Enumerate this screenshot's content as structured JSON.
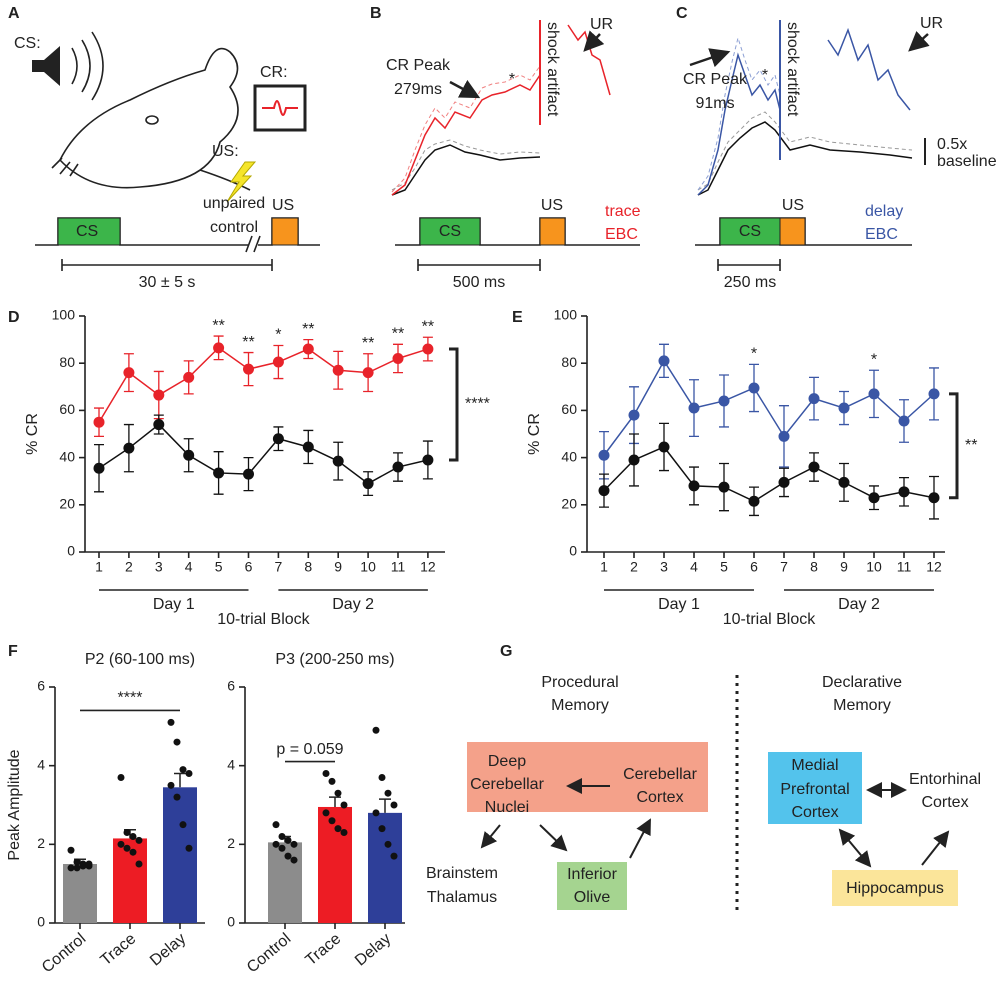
{
  "panel_labels": [
    "A",
    "B",
    "C",
    "D",
    "E",
    "F",
    "G"
  ],
  "panel_a": {
    "cs_label": "CS:",
    "cr_label": "CR:",
    "us_label": "US:",
    "unpaired": [
      "unpaired",
      "control"
    ],
    "cs_box": "CS",
    "us_box": "US",
    "interval": "30 ± 5 s"
  },
  "panel_b": {
    "cr_peak": [
      "CR Peak",
      "279ms"
    ],
    "star": "*",
    "shock": "shock artifact",
    "ur": "UR",
    "cs_box": "CS",
    "us_box": "US",
    "condition": [
      "trace",
      "EBC"
    ],
    "scale": "500 ms"
  },
  "panel_c": {
    "cr_peak": [
      "CR Peak",
      "91ms"
    ],
    "star": "*",
    "shock": "shock artifact",
    "ur": "UR",
    "cs_box": "CS",
    "us_box": "US",
    "condition": [
      "delay",
      "EBC"
    ],
    "scale": "250 ms",
    "scale_y": [
      "0.5x",
      "baseline"
    ]
  },
  "chart_data": [
    {
      "type": "line",
      "ylabel": "% CR",
      "xlabel": "10-trial Block",
      "groups": [
        "Day 1",
        "Day 2"
      ],
      "categories": [
        "1",
        "2",
        "3",
        "4",
        "5",
        "6",
        "7",
        "8",
        "9",
        "10",
        "11",
        "12"
      ],
      "ylim": [
        0,
        100
      ],
      "yticks": [
        0,
        20,
        40,
        60,
        80,
        100
      ],
      "series": [
        {
          "color": "#e8232a",
          "values": [
            55,
            76,
            66.5,
            74,
            86.5,
            77.5,
            80.5,
            86,
            77,
            76,
            82,
            86
          ],
          "errors": [
            6,
            8,
            10,
            7,
            5,
            7,
            7,
            4,
            8,
            8,
            6,
            5
          ]
        },
        {
          "color": "#111111",
          "values": [
            35.5,
            44,
            54,
            41,
            33.5,
            33,
            48,
            44.5,
            38.5,
            29,
            36,
            39
          ],
          "errors": [
            10,
            10,
            4,
            7,
            9,
            7,
            5,
            7,
            8,
            5,
            6,
            8
          ]
        }
      ],
      "stars": [
        null,
        null,
        null,
        null,
        "**",
        "**",
        "*",
        "**",
        null,
        "**",
        "**",
        "**"
      ],
      "bracket_label": "****"
    },
    {
      "type": "line",
      "ylabel": "% CR",
      "xlabel": "10-trial Block",
      "groups": [
        "Day 1",
        "Day 2"
      ],
      "categories": [
        "1",
        "2",
        "3",
        "4",
        "5",
        "6",
        "7",
        "8",
        "9",
        "10",
        "11",
        "12"
      ],
      "ylim": [
        0,
        100
      ],
      "yticks": [
        0,
        20,
        40,
        60,
        80,
        100
      ],
      "series": [
        {
          "color": "#3a56a5",
          "values": [
            41,
            58,
            81,
            61,
            64,
            69.5,
            49,
            65,
            61,
            67,
            55.5,
            67
          ],
          "errors": [
            10,
            12,
            7,
            12,
            11,
            10,
            13,
            9,
            7,
            10,
            9,
            11
          ]
        },
        {
          "color": "#111111",
          "values": [
            26,
            39,
            44.5,
            28,
            27.5,
            21.5,
            29.5,
            36,
            29.5,
            23,
            25.5,
            23
          ],
          "errors": [
            7,
            11,
            10,
            8,
            10,
            6,
            6,
            6,
            8,
            5,
            6,
            9
          ]
        }
      ],
      "stars": [
        null,
        null,
        null,
        null,
        null,
        "*",
        null,
        null,
        null,
        "*",
        null,
        null
      ],
      "bracket_label": "**"
    },
    {
      "type": "bar",
      "title": "P2 (60-100 ms)",
      "ylabel": "Peak Amplitude",
      "categories": [
        "Control",
        "Trace",
        "Delay"
      ],
      "colors": [
        "#8c8c8c",
        "#ed1c24",
        "#2e3f99"
      ],
      "values": [
        1.5,
        2.15,
        3.45
      ],
      "errors": [
        0.12,
        0.22,
        0.35
      ],
      "points": [
        [
          1.85,
          1.55,
          1.5,
          1.45,
          1.4,
          1.4,
          1.45,
          1.5
        ],
        [
          3.7,
          2.3,
          2.2,
          2.1,
          2.0,
          1.9,
          1.8,
          1.5
        ],
        [
          5.1,
          4.6,
          3.9,
          3.8,
          3.5,
          3.2,
          2.5,
          1.9
        ]
      ],
      "ylim": [
        0,
        6
      ],
      "yticks": [
        0,
        2,
        4,
        6
      ],
      "comparison": {
        "label": "****",
        "between": [
          "Control",
          "Delay"
        ]
      }
    },
    {
      "type": "bar",
      "title": "P3 (200-250 ms)",
      "categories": [
        "Control",
        "Trace",
        "Delay"
      ],
      "colors": [
        "#8c8c8c",
        "#ed1c24",
        "#2e3f99"
      ],
      "values": [
        2.05,
        2.95,
        2.8
      ],
      "errors": [
        0.15,
        0.25,
        0.35
      ],
      "points": [
        [
          2.5,
          2.2,
          2.1,
          2.0,
          2.0,
          1.9,
          1.7,
          1.6
        ],
        [
          3.8,
          3.6,
          3.3,
          3.0,
          2.8,
          2.6,
          2.4,
          2.3
        ],
        [
          4.9,
          3.7,
          3.3,
          3.0,
          2.8,
          2.4,
          2.0,
          1.7
        ]
      ],
      "ylim": [
        0,
        6
      ],
      "yticks": [
        0,
        2,
        4,
        6
      ],
      "comparison": {
        "label": "p = 0.059",
        "between": [
          "Control",
          "Trace"
        ]
      }
    }
  ],
  "panel_g": {
    "procedural": [
      "Procedural",
      "Memory"
    ],
    "declarative": [
      "Declarative",
      "Memory"
    ],
    "nodes": [
      {
        "label": [
          "Deep",
          "Cerebellar",
          "Nuclei"
        ]
      },
      {
        "label": [
          "Cerebellar",
          "Cortex"
        ]
      },
      {
        "label": [
          "Brainstem",
          "Thalamus"
        ]
      },
      {
        "label": [
          "Inferior",
          "Olive"
        ]
      },
      {
        "label": [
          "Medial",
          "Prefrontal",
          "Cortex"
        ]
      },
      {
        "label": [
          "Entorhinal",
          "Cortex"
        ]
      },
      {
        "label": [
          "Hippocampus"
        ]
      }
    ]
  }
}
